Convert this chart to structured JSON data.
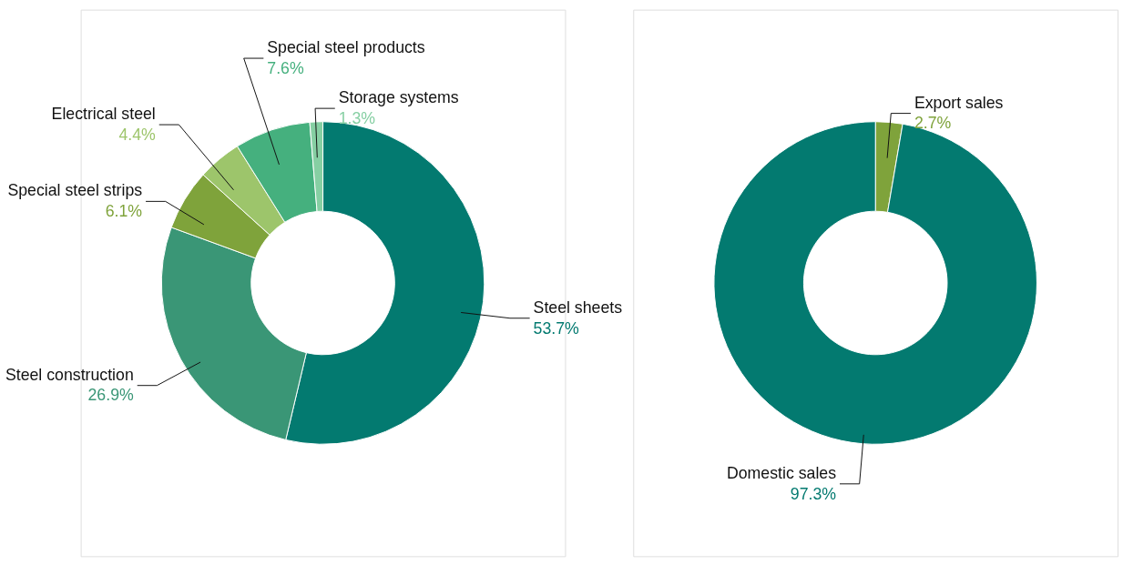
{
  "chart_data": [
    {
      "type": "donut",
      "categories": [
        "Steel sheets",
        "Steel construction",
        "Special steel strips",
        "Electrical steel",
        "Special steel products",
        "Storage systems"
      ],
      "values": [
        53.7,
        26.9,
        6.1,
        4.4,
        7.6,
        1.3
      ],
      "colors": [
        "#037a70",
        "#3a9676",
        "#7fa33b",
        "#9dc56b",
        "#45b07e",
        "#86cfa3"
      ],
      "value_labels": [
        "53.7%",
        "26.9%",
        "6.1%",
        "4.4%",
        "7.6%",
        "1.3%"
      ],
      "legend": false
    },
    {
      "type": "donut",
      "categories": [
        "Export sales",
        "Domestic sales"
      ],
      "values": [
        2.7,
        97.3
      ],
      "colors": [
        "#7fa33b",
        "#037a70"
      ],
      "value_labels": [
        "2.7%",
        "97.3%"
      ],
      "legend": false
    }
  ]
}
